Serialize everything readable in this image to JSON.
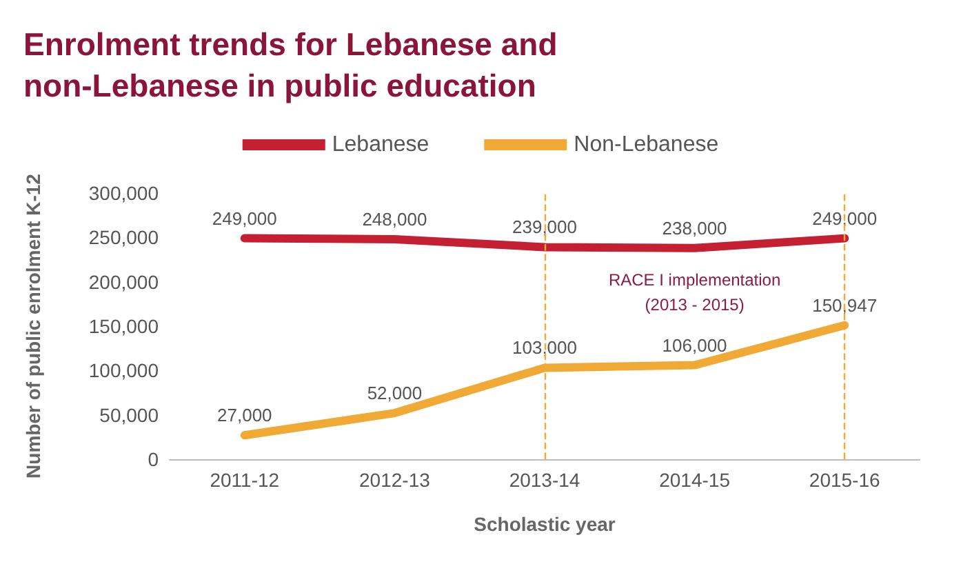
{
  "chart_data": {
    "type": "line",
    "title": "Enrolment trends for Lebanese and\nnon-Lebanese in public education",
    "xlabel": "Scholastic year",
    "ylabel": "Number of public enrolment K-12",
    "categories": [
      "2011-12",
      "2012-13",
      "2013-14",
      "2014-15",
      "2015-16"
    ],
    "series": [
      {
        "name": "Lebanese",
        "color": "#c42031",
        "values": [
          249000,
          248000,
          239000,
          238000,
          249000
        ],
        "value_labels": [
          "249,000",
          "248,000",
          "239,000",
          "238,000",
          "249,000"
        ]
      },
      {
        "name": "Non-Lebanese",
        "color": "#f0a934",
        "values": [
          27000,
          52000,
          103000,
          106000,
          150947
        ],
        "value_labels": [
          "27,000",
          "52,000",
          "103,000",
          "106,000",
          "150,947"
        ]
      }
    ],
    "ylim": [
      0,
      300000
    ],
    "yticks": [
      {
        "value": 0,
        "label": "0"
      },
      {
        "value": 50000,
        "label": "50,000"
      },
      {
        "value": 100000,
        "label": "100,000"
      },
      {
        "value": 150000,
        "label": "150,000"
      },
      {
        "value": 200000,
        "label": "200,000"
      },
      {
        "value": 250000,
        "label": "250,000"
      },
      {
        "value": 300000,
        "label": "300,000"
      }
    ],
    "ref_lines": [
      {
        "axis": "x",
        "value": "2013-14",
        "label": null,
        "color": "#f0a934",
        "line_style": "dashed"
      },
      {
        "axis": "x",
        "value": "2015-16",
        "label": null,
        "color": "#f0a934",
        "line_style": "dashed"
      }
    ],
    "annotations": [
      "RACE I implementation\n(2013 - 2015)"
    ],
    "grid": false,
    "legend": "top",
    "marker": "none",
    "line_style": "solid"
  }
}
